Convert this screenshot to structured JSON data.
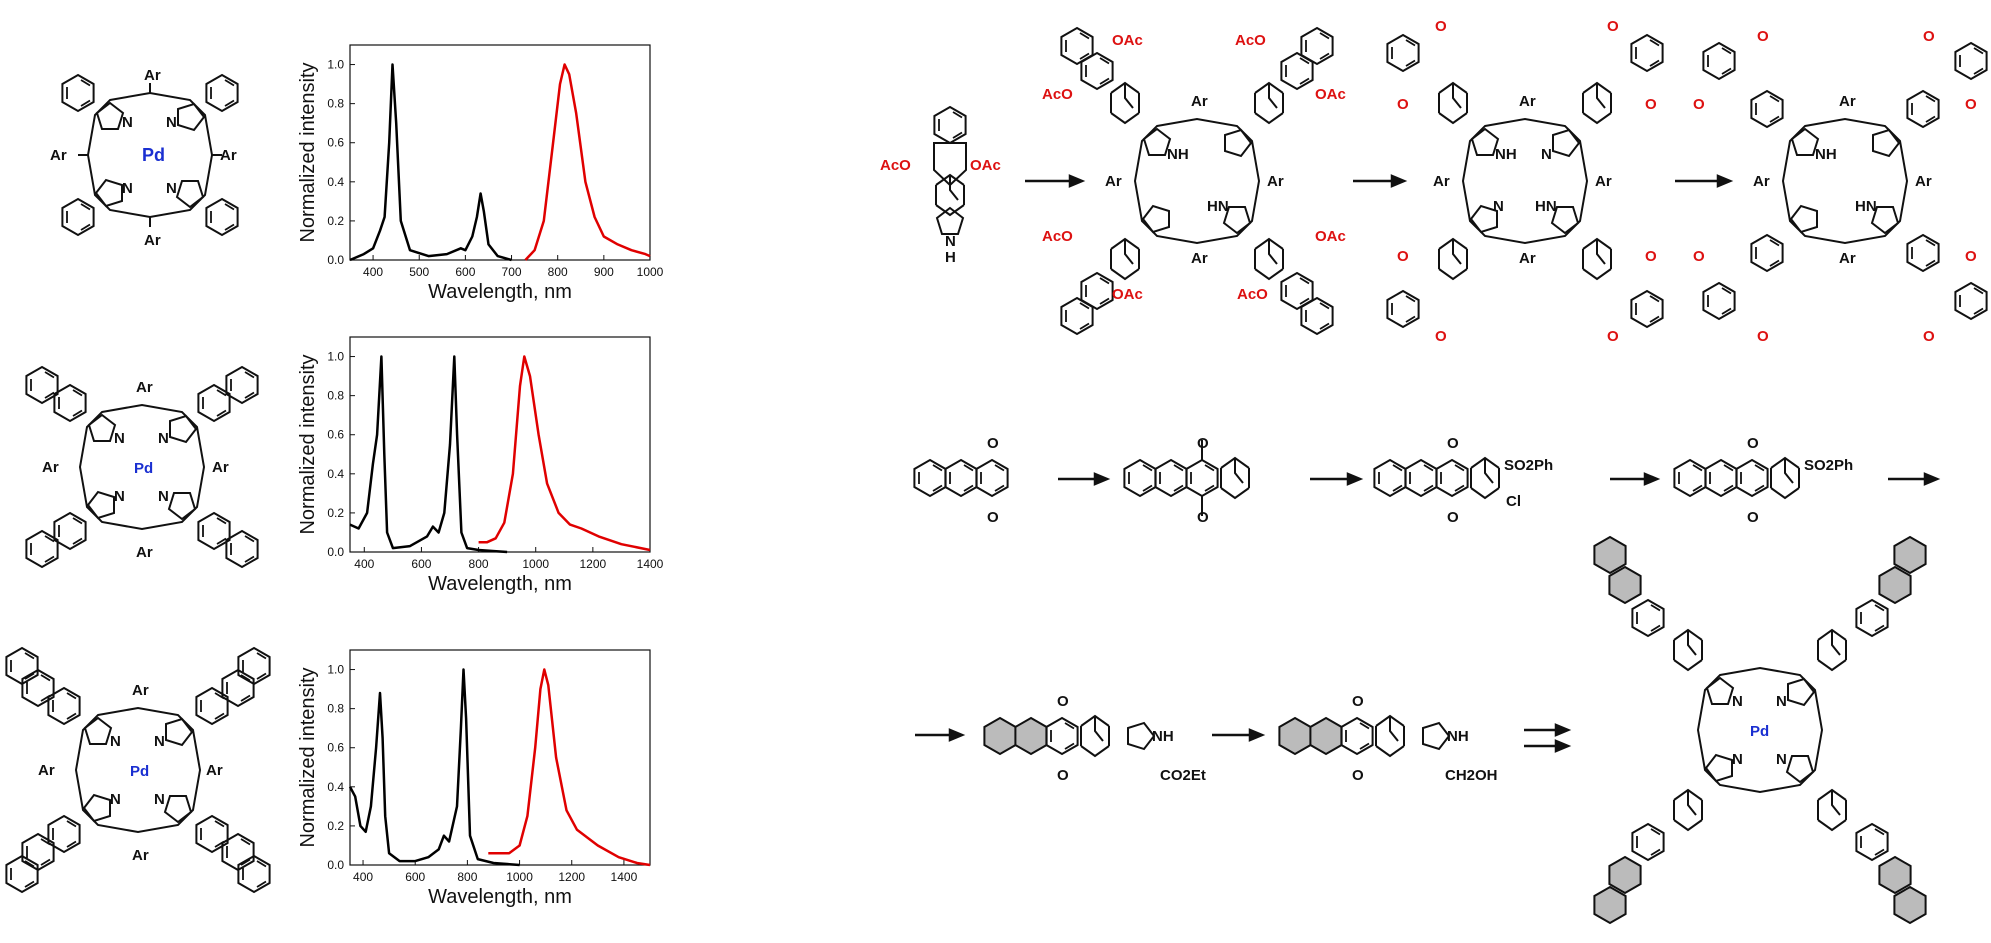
{
  "charts": [
    {
      "name": "top",
      "xlabel": "Wavelength, nm",
      "ylabel": "Normalized intensity",
      "xlim": [
        350,
        1000
      ],
      "ylim": [
        0,
        1.1
      ],
      "xticks": [
        "400",
        "500",
        "600",
        "700",
        "800",
        "900",
        "1000"
      ],
      "yticks": [
        "0.0",
        "0.2",
        "0.4",
        "0.6",
        "0.8",
        "1.0"
      ],
      "colors": {
        "absorption": "#000000",
        "emission": "#e00000"
      },
      "metal": "Pd",
      "substituent": "Ar"
    },
    {
      "name": "middle",
      "xlabel": "Wavelength, nm",
      "ylabel": "Normalized intensity",
      "xlim": [
        350,
        1400
      ],
      "ylim": [
        0,
        1.1
      ],
      "xticks": [
        "400",
        "600",
        "800",
        "1000",
        "1200",
        "1400"
      ],
      "yticks": [
        "0.0",
        "0.2",
        "0.4",
        "0.6",
        "0.8",
        "1.0"
      ],
      "colors": {
        "absorption": "#000000",
        "emission": "#e00000"
      },
      "metal": "Pd",
      "substituent": "Ar"
    },
    {
      "name": "bottom",
      "xlabel": "Wavelength, nm",
      "ylabel": "Normalized intensity",
      "xlim": [
        350,
        1500
      ],
      "ylim": [
        0,
        1.1
      ],
      "xticks": [
        "400",
        "600",
        "800",
        "1000",
        "1200",
        "1400"
      ],
      "yticks": [
        "0.0",
        "0.2",
        "0.4",
        "0.6",
        "0.8",
        "1.0"
      ],
      "colors": {
        "absorption": "#000000",
        "emission": "#e00000"
      },
      "metal": "Pd",
      "substituent": "Ar"
    }
  ],
  "chart_data": [
    {
      "type": "line",
      "xlabel": "Wavelength, nm",
      "ylabel": "Normalized intensity",
      "xlim": [
        350,
        1000
      ],
      "ylim": [
        0,
        1.1
      ],
      "series": [
        {
          "x": [
            350,
            380,
            400,
            415,
            425,
            435,
            442,
            450,
            460,
            480,
            520,
            560,
            590,
            600,
            615,
            625,
            633,
            640,
            650,
            670,
            700
          ],
          "values": [
            0.0,
            0.03,
            0.06,
            0.15,
            0.22,
            0.6,
            1.0,
            0.7,
            0.2,
            0.05,
            0.02,
            0.03,
            0.06,
            0.05,
            0.12,
            0.22,
            0.34,
            0.25,
            0.08,
            0.02,
            0.0
          ]
        },
        {
          "x": [
            730,
            750,
            770,
            790,
            805,
            815,
            825,
            840,
            860,
            880,
            900,
            930,
            960,
            990,
            1000
          ],
          "values": [
            0.0,
            0.05,
            0.2,
            0.6,
            0.9,
            1.0,
            0.95,
            0.75,
            0.4,
            0.22,
            0.12,
            0.08,
            0.05,
            0.03,
            0.02
          ]
        }
      ]
    },
    {
      "type": "line",
      "xlabel": "Wavelength, nm",
      "ylabel": "Normalized intensity",
      "xlim": [
        350,
        1400
      ],
      "ylim": [
        0,
        1.1
      ],
      "series": [
        {
          "x": [
            350,
            380,
            410,
            430,
            445,
            460,
            470,
            480,
            500,
            560,
            620,
            640,
            660,
            680,
            700,
            715,
            725,
            740,
            760,
            800,
            900
          ],
          "values": [
            0.14,
            0.12,
            0.2,
            0.45,
            0.6,
            1.0,
            0.5,
            0.1,
            0.02,
            0.03,
            0.08,
            0.13,
            0.1,
            0.2,
            0.55,
            1.0,
            0.6,
            0.1,
            0.02,
            0.01,
            0.0
          ]
        },
        {
          "x": [
            800,
            830,
            860,
            890,
            920,
            945,
            960,
            980,
            1010,
            1040,
            1080,
            1120,
            1160,
            1220,
            1300,
            1400
          ],
          "values": [
            0.05,
            0.05,
            0.07,
            0.15,
            0.4,
            0.85,
            1.0,
            0.9,
            0.6,
            0.35,
            0.2,
            0.14,
            0.12,
            0.08,
            0.04,
            0.01
          ]
        }
      ]
    },
    {
      "type": "line",
      "xlabel": "Wavelength, nm",
      "ylabel": "Normalized intensity",
      "xlim": [
        350,
        1500
      ],
      "ylim": [
        0,
        1.1
      ],
      "series": [
        {
          "x": [
            350,
            370,
            390,
            410,
            430,
            450,
            465,
            475,
            485,
            500,
            540,
            600,
            650,
            690,
            710,
            730,
            760,
            775,
            785,
            795,
            810,
            840,
            900,
            1000
          ],
          "values": [
            0.4,
            0.35,
            0.2,
            0.17,
            0.3,
            0.6,
            0.88,
            0.65,
            0.25,
            0.06,
            0.02,
            0.02,
            0.04,
            0.08,
            0.15,
            0.12,
            0.3,
            0.7,
            1.0,
            0.75,
            0.15,
            0.03,
            0.01,
            0.0
          ]
        },
        {
          "x": [
            880,
            920,
            960,
            1000,
            1030,
            1060,
            1080,
            1095,
            1110,
            1140,
            1180,
            1220,
            1260,
            1300,
            1380,
            1450,
            1500
          ],
          "values": [
            0.06,
            0.06,
            0.06,
            0.1,
            0.25,
            0.6,
            0.9,
            1.0,
            0.92,
            0.55,
            0.28,
            0.18,
            0.14,
            0.1,
            0.04,
            0.01,
            0.0
          ]
        }
      ]
    }
  ],
  "reagents": {
    "oac": "OAc",
    "aco": "AcO",
    "nh": "NH",
    "hn": "HN",
    "n": "N",
    "h": "H",
    "ar": "Ar",
    "o": "O",
    "cl": "Cl",
    "so2ph": "SO2Ph",
    "co2et": "CO2Et",
    "ch2oh": "CH2OH",
    "pd": "Pd"
  }
}
